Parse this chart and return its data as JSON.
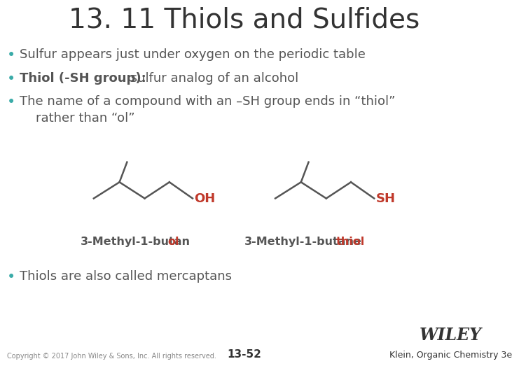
{
  "title": "13. 11 Thiols and Sulfides",
  "title_fontsize": 28,
  "bullet_color": "#3aaba8",
  "background_color": "#ffffff",
  "bullet1": "Sulfur appears just under oxygen on the periodic table",
  "bullet2_bold": "Thiol (-SH group):",
  "bullet2_rest": " sulfur analog of an alcohol",
  "bullet3_line1": "The name of a compound with an –SH group ends in “thiol”",
  "bullet3_line2": "    rather than “ol”",
  "bullet4": "Thiols are also called mercaptans",
  "label1_black": "3-Methyl-1-butan",
  "label1_red": "ol",
  "label2_black": "3-Methyl-1-butane",
  "label2_red": "thiol",
  "oh_text": "OH",
  "sh_text": "SH",
  "red_color": "#c0392b",
  "dark_gray": "#555555",
  "bond_color": "#555555",
  "footer_left": "Copyright © 2017 John Wiley & Sons, Inc. All rights reserved.",
  "footer_center": "13-52",
  "footer_right_wiley": "WILEY",
  "footer_right_sub": "Klein, Organic Chemistry 3e"
}
